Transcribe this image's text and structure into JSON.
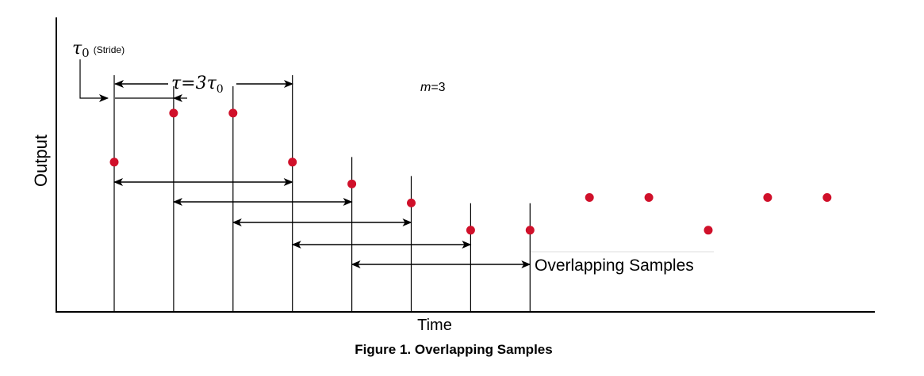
{
  "axes": {
    "y_title": "Output",
    "x_title": "Time"
  },
  "caption": "Figure 1. Overlapping Samples",
  "annotations": {
    "stride_symbol": "τ",
    "stride_sub": "0",
    "stride_text": "(Stride)",
    "tau_eq_prefix": "τ=3τ",
    "tau_eq_sub": "0",
    "m_var": "m",
    "m_eq": "=3",
    "overlap_label": "Overlapping Samples"
  },
  "colors": {
    "dot": "#d0102a",
    "line": "#000000"
  },
  "samples": {
    "output_levels": [
      0.55,
      0.73,
      0.73,
      0.55,
      0.47,
      0.4,
      0.3,
      0.3,
      0.42,
      0.42,
      0.3,
      0.42,
      0.42
    ],
    "marked_sample_lines": [
      1,
      2,
      3,
      4,
      5,
      6,
      7,
      8
    ],
    "overlapping_pairs": [
      [
        1,
        4
      ],
      [
        2,
        5
      ],
      [
        3,
        6
      ],
      [
        4,
        7
      ],
      [
        5,
        8
      ]
    ]
  }
}
